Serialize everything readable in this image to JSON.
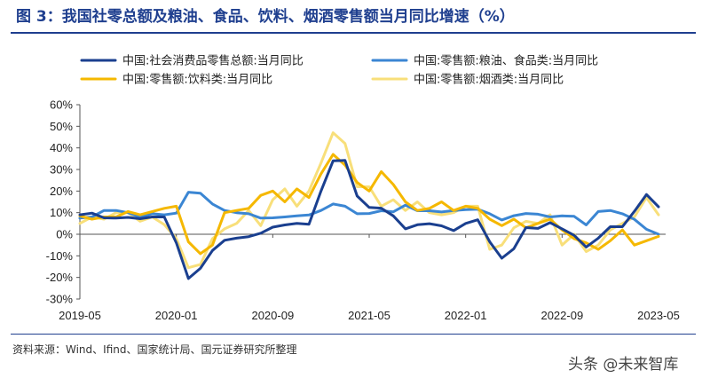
{
  "header": {
    "title": "图 3：我国社零总额及粮油、食品、饮料、烟酒零售额当月同比增速（%）"
  },
  "footer": {
    "source": "资料来源：Wind、Ifind、国家统计局、国元证券研究所整理",
    "watermark": "头条 @未来智库"
  },
  "chart_data": {
    "type": "line",
    "x": [
      "2019-05",
      "2019-06",
      "2019-07",
      "2019-08",
      "2019-09",
      "2019-10",
      "2019-11",
      "2019-12",
      "2020-01",
      "2020-02",
      "2020-03",
      "2020-04",
      "2020-05",
      "2020-06",
      "2020-07",
      "2020-08",
      "2020-09",
      "2020-10",
      "2020-11",
      "2020-12",
      "2021-01",
      "2021-02",
      "2021-03",
      "2021-04",
      "2021-05",
      "2021-06",
      "2021-07",
      "2021-08",
      "2021-09",
      "2021-10",
      "2021-11",
      "2021-12",
      "2022-01",
      "2022-02",
      "2022-03",
      "2022-04",
      "2022-05",
      "2022-06",
      "2022-07",
      "2022-08",
      "2022-09",
      "2022-10",
      "2022-11",
      "2022-12",
      "2023-01",
      "2023-02",
      "2023-03",
      "2023-04",
      "2023-05"
    ],
    "x_tick_labels": [
      "2019-05",
      "2020-01",
      "2020-09",
      "2021-05",
      "2022-01",
      "2022-09",
      "2023-05"
    ],
    "ylim": [
      -30,
      60
    ],
    "y_ticks": [
      -30,
      -20,
      -10,
      0,
      10,
      20,
      30,
      40,
      50,
      60
    ],
    "y_tick_format": "percent",
    "grid": false,
    "legend": {
      "position": "top",
      "columns": 2
    },
    "series": [
      {
        "name": "中国:社会消费品零售总额:当月同比",
        "color": "#1a3f8f",
        "values": [
          9.0,
          9.8,
          7.6,
          7.5,
          7.8,
          7.2,
          8.0,
          8.0,
          -4.0,
          -20.5,
          -15.8,
          -7.5,
          -2.8,
          -1.8,
          -1.1,
          0.5,
          3.3,
          4.3,
          5.0,
          4.6,
          20.0,
          34.0,
          34.2,
          17.7,
          12.4,
          12.1,
          8.5,
          2.5,
          4.4,
          4.9,
          3.9,
          1.7,
          5.0,
          6.7,
          -3.5,
          -11.1,
          -6.7,
          3.1,
          2.7,
          5.4,
          2.5,
          -0.5,
          -5.9,
          -1.8,
          3.5,
          3.5,
          10.6,
          18.4,
          12.7
        ]
      },
      {
        "name": "中国:零售额:粮油、食品类:当月同比",
        "color": "#3b86d3",
        "values": [
          7.5,
          8.0,
          11.0,
          11.0,
          10.0,
          8.0,
          9.5,
          9.0,
          9.8,
          19.5,
          19.0,
          14.0,
          11.0,
          10.0,
          9.5,
          7.5,
          7.6,
          8.0,
          8.5,
          8.9,
          11.0,
          14.0,
          13.0,
          9.5,
          9.6,
          10.9,
          10.4,
          13.5,
          10.9,
          10.9,
          10.3,
          11.0,
          11.4,
          11.6,
          9.5,
          6.6,
          8.6,
          9.6,
          9.3,
          8.0,
          8.5,
          8.3,
          4.3,
          10.5,
          11.0,
          9.5,
          6.9,
          2.3,
          0.0
        ]
      },
      {
        "name": "中国:零售额:饮料类:当月同比",
        "color": "#f5b800",
        "values": [
          8.5,
          7.0,
          8.0,
          8.0,
          10.5,
          9.0,
          10.5,
          12.0,
          13.0,
          -3.5,
          -9.0,
          -5.0,
          10.0,
          11.0,
          12.0,
          18.0,
          20.0,
          15.0,
          21.0,
          17.0,
          28.0,
          37.0,
          32.0,
          24.0,
          20.0,
          29.0,
          23.0,
          15.0,
          11.0,
          12.0,
          15.0,
          11.0,
          13.0,
          12.0,
          7.0,
          4.0,
          7.0,
          3.0,
          5.0,
          7.0,
          2.0,
          -2.0,
          -4.0,
          -7.0,
          -3.0,
          2.0,
          -5.0,
          -3.0,
          -1.0
        ]
      },
      {
        "name": "中国:零售额:烟酒类:当月同比",
        "color": "#f8df7a",
        "values": [
          5.0,
          8.0,
          7.0,
          10.0,
          10.0,
          6.0,
          8.0,
          4.5,
          -2.0,
          -15.5,
          -14.0,
          -2.0,
          2.5,
          5.0,
          11.0,
          4.0,
          16.0,
          21.0,
          13.0,
          20.0,
          33.0,
          47.0,
          42.0,
          22.0,
          22.0,
          13.0,
          16.0,
          11.0,
          15.0,
          10.0,
          9.0,
          10.0,
          13.0,
          13.0,
          -7.0,
          -5.0,
          3.0,
          6.0,
          5.0,
          9.0,
          -5.0,
          0.0,
          -8.0,
          -5.0,
          2.0,
          5.0,
          8.0,
          17.0,
          9.0
        ]
      }
    ]
  }
}
